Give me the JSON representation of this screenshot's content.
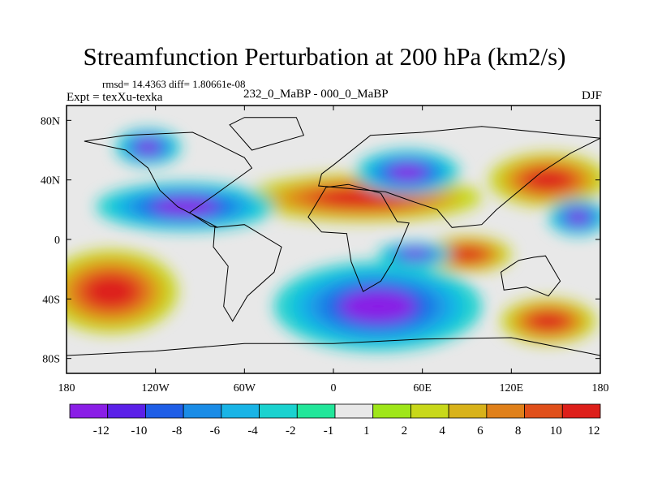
{
  "title": "Streamfunction Perturbation at 200 hPa (km2/s)",
  "stats": "rmsd= 14.4363 diff= 1.80661e-08",
  "expt": "Expt = texXu-texka",
  "subtitle": "232_0_MaBP - 000_0_MaBP",
  "season": "DJF",
  "map": {
    "lon_range": [
      -180,
      180
    ],
    "lat_range": [
      -90,
      90
    ],
    "x_ticks": [
      {
        "lon": -180,
        "label": "180"
      },
      {
        "lon": -120,
        "label": "120W"
      },
      {
        "lon": -60,
        "label": "60W"
      },
      {
        "lon": 0,
        "label": "0"
      },
      {
        "lon": 60,
        "label": "60E"
      },
      {
        "lon": 120,
        "label": "120E"
      },
      {
        "lon": 180,
        "label": "180"
      }
    ],
    "y_ticks": [
      {
        "lat": 80,
        "label": "80N"
      },
      {
        "lat": 40,
        "label": "40N"
      },
      {
        "lat": 0,
        "label": "0"
      },
      {
        "lat": -40,
        "label": "40S"
      },
      {
        "lat": -80,
        "label": "80S"
      }
    ],
    "blobs": [
      {
        "level": "high",
        "lon": -150,
        "lat": -35,
        "rlon": 45,
        "rlat": 28
      },
      {
        "level": "high",
        "lon": 20,
        "lat": 28,
        "rlon": 80,
        "rlat": 16
      },
      {
        "level": "high",
        "lon": 145,
        "lat": 40,
        "rlon": 40,
        "rlat": 18
      },
      {
        "level": "high",
        "lon": 90,
        "lat": -10,
        "rlon": 30,
        "rlat": 12
      },
      {
        "level": "high",
        "lon": 145,
        "lat": -55,
        "rlon": 32,
        "rlat": 15
      },
      {
        "level": "low",
        "lon": -100,
        "lat": 22,
        "rlon": 60,
        "rlat": 16
      },
      {
        "level": "low",
        "lon": 30,
        "lat": -45,
        "rlon": 70,
        "rlat": 30
      },
      {
        "level": "low",
        "lon": 50,
        "lat": 45,
        "rlon": 35,
        "rlat": 15
      },
      {
        "level": "low",
        "lon": 165,
        "lat": 15,
        "rlon": 20,
        "rlat": 12
      },
      {
        "level": "low",
        "lon": 55,
        "lat": -10,
        "rlon": 25,
        "rlat": 8
      },
      {
        "level": "low",
        "lon": -125,
        "lat": 62,
        "rlon": 22,
        "rlat": 12
      }
    ],
    "land_outlines": [
      {
        "name": "north-america",
        "points": [
          [
            -168,
            66
          ],
          [
            -140,
            70
          ],
          [
            -95,
            72
          ],
          [
            -80,
            65
          ],
          [
            -60,
            55
          ],
          [
            -55,
            48
          ],
          [
            -80,
            30
          ],
          [
            -97,
            18
          ],
          [
            -83,
            9
          ],
          [
            -78,
            8
          ],
          [
            -105,
            22
          ],
          [
            -117,
            33
          ],
          [
            -125,
            48
          ],
          [
            -140,
            60
          ]
        ]
      },
      {
        "name": "south-america",
        "points": [
          [
            -80,
            8
          ],
          [
            -60,
            10
          ],
          [
            -35,
            -5
          ],
          [
            -40,
            -22
          ],
          [
            -58,
            -38
          ],
          [
            -68,
            -55
          ],
          [
            -74,
            -45
          ],
          [
            -71,
            -18
          ],
          [
            -81,
            -5
          ]
        ]
      },
      {
        "name": "eurasia",
        "points": [
          [
            -10,
            36
          ],
          [
            -8,
            44
          ],
          [
            0,
            50
          ],
          [
            10,
            58
          ],
          [
            25,
            70
          ],
          [
            60,
            72
          ],
          [
            100,
            76
          ],
          [
            140,
            72
          ],
          [
            180,
            68
          ],
          [
            160,
            58
          ],
          [
            140,
            45
          ],
          [
            122,
            30
          ],
          [
            110,
            20
          ],
          [
            100,
            10
          ],
          [
            80,
            8
          ],
          [
            70,
            20
          ],
          [
            55,
            25
          ],
          [
            35,
            32
          ]
        ]
      },
      {
        "name": "africa",
        "points": [
          [
            -17,
            15
          ],
          [
            -5,
            35
          ],
          [
            10,
            37
          ],
          [
            32,
            31
          ],
          [
            43,
            12
          ],
          [
            51,
            11
          ],
          [
            40,
            -15
          ],
          [
            32,
            -28
          ],
          [
            20,
            -35
          ],
          [
            12,
            -15
          ],
          [
            9,
            4
          ],
          [
            -8,
            5
          ]
        ]
      },
      {
        "name": "australia",
        "points": [
          [
            113,
            -22
          ],
          [
            125,
            -14
          ],
          [
            135,
            -12
          ],
          [
            143,
            -11
          ],
          [
            153,
            -28
          ],
          [
            145,
            -38
          ],
          [
            130,
            -32
          ],
          [
            115,
            -34
          ]
        ]
      },
      {
        "name": "greenland",
        "points": [
          [
            -55,
            60
          ],
          [
            -20,
            70
          ],
          [
            -25,
            82
          ],
          [
            -60,
            82
          ],
          [
            -70,
            77
          ]
        ]
      },
      {
        "name": "antarctica",
        "points": [
          [
            -180,
            -78
          ],
          [
            -120,
            -75
          ],
          [
            -60,
            -70
          ],
          [
            0,
            -70
          ],
          [
            60,
            -67
          ],
          [
            120,
            -66
          ],
          [
            180,
            -78
          ],
          [
            180,
            -90
          ],
          [
            -180,
            -90
          ]
        ]
      }
    ]
  },
  "colorbar": {
    "colors": [
      "#8a1ee6",
      "#5b20e8",
      "#1f5ee6",
      "#1a8ce6",
      "#19b4e6",
      "#1ad2cf",
      "#22e69a",
      "#e8e8e8",
      "#9fe619",
      "#c8d81a",
      "#d8b21a",
      "#e0801a",
      "#e04f1a",
      "#dd1f1a"
    ],
    "labels": [
      "-12",
      "-10",
      "-8",
      "-6",
      "-4",
      "-2",
      "-1",
      "1",
      "2",
      "4",
      "6",
      "8",
      "10",
      "12"
    ]
  }
}
